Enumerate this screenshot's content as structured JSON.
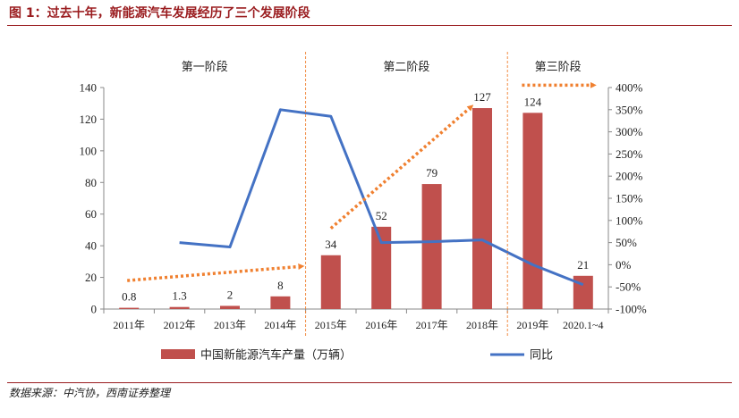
{
  "figure_title": "图 1：过去十年，新能源汽车发展经历了三个发展阶段",
  "source_note": "数据来源：中汽协，西南证券整理",
  "colors": {
    "title": "#9a1c1f",
    "bar": "#c0504d",
    "line": "#4472c4",
    "arrow": "#f08030",
    "divider": "#f08030"
  },
  "chart_data": {
    "type": "bar",
    "categories": [
      "2011年",
      "2012年",
      "2013年",
      "2014年",
      "2015年",
      "2016年",
      "2017年",
      "2018年",
      "2019年",
      "2020.1~4"
    ],
    "series": [
      {
        "name": "中国新能源汽车产量（万辆）",
        "type": "bar",
        "axis": "left",
        "values": [
          0.8,
          1.3,
          2,
          8,
          34,
          52,
          79,
          127,
          124,
          21
        ],
        "data_labels": [
          "0.8",
          "1.3",
          "2",
          "8",
          "34",
          "52",
          "79",
          "127",
          "124",
          "21"
        ]
      },
      {
        "name": "同比",
        "type": "line",
        "axis": "right",
        "values": [
          null,
          50,
          40,
          350,
          335,
          50,
          52,
          56,
          0,
          -45
        ]
      }
    ],
    "y_left": {
      "min": 0,
      "max": 140,
      "ticks": [
        "0",
        "20",
        "40",
        "60",
        "80",
        "100",
        "120",
        "140"
      ]
    },
    "y_right": {
      "min": -100,
      "max": 400,
      "ticks": [
        "-100%",
        "-50%",
        "0%",
        "50%",
        "100%",
        "150%",
        "200%",
        "250%",
        "300%",
        "350%",
        "400%"
      ]
    },
    "stages": [
      "第一阶段",
      "第二阶段",
      "第三阶段"
    ],
    "legend_position": "bottom"
  }
}
